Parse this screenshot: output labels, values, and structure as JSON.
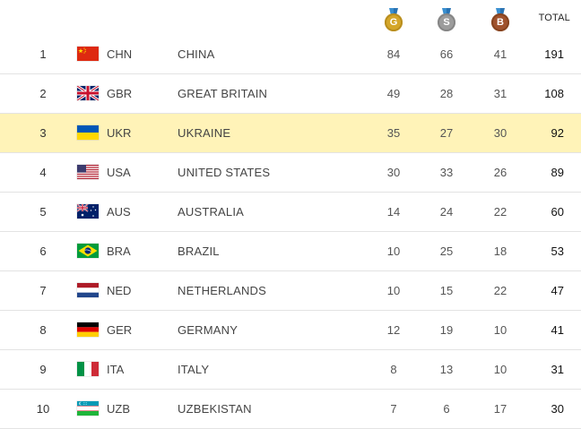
{
  "header": {
    "gold_letter": "G",
    "silver_letter": "S",
    "bronze_letter": "B",
    "total_label": "TOTAL"
  },
  "colors": {
    "gold": "#d4a62a",
    "silver": "#9c9c9c",
    "bronze": "#a0522d",
    "highlight_row": "#fff3b8"
  },
  "rows": [
    {
      "rank": "1",
      "flag": "china-flag-icon",
      "code": "CHN",
      "name": "CHINA",
      "gold": "84",
      "silver": "66",
      "bronze": "41",
      "total": "191"
    },
    {
      "rank": "2",
      "flag": "great-britain-flag-icon",
      "code": "GBR",
      "name": "GREAT BRITAIN",
      "gold": "49",
      "silver": "28",
      "bronze": "31",
      "total": "108"
    },
    {
      "rank": "3",
      "flag": "ukraine-flag-icon",
      "code": "UKR",
      "name": "UKRAINE",
      "gold": "35",
      "silver": "27",
      "bronze": "30",
      "total": "92"
    },
    {
      "rank": "4",
      "flag": "usa-flag-icon",
      "code": "USA",
      "name": "UNITED STATES",
      "gold": "30",
      "silver": "33",
      "bronze": "26",
      "total": "89"
    },
    {
      "rank": "5",
      "flag": "australia-flag-icon",
      "code": "AUS",
      "name": "AUSTRALIA",
      "gold": "14",
      "silver": "24",
      "bronze": "22",
      "total": "60"
    },
    {
      "rank": "6",
      "flag": "brazil-flag-icon",
      "code": "BRA",
      "name": "BRAZIL",
      "gold": "10",
      "silver": "25",
      "bronze": "18",
      "total": "53"
    },
    {
      "rank": "7",
      "flag": "netherlands-flag-icon",
      "code": "NED",
      "name": "NETHERLANDS",
      "gold": "10",
      "silver": "15",
      "bronze": "22",
      "total": "47"
    },
    {
      "rank": "8",
      "flag": "germany-flag-icon",
      "code": "GER",
      "name": "GERMANY",
      "gold": "12",
      "silver": "19",
      "bronze": "10",
      "total": "41"
    },
    {
      "rank": "9",
      "flag": "italy-flag-icon",
      "code": "ITA",
      "name": "ITALY",
      "gold": "8",
      "silver": "13",
      "bronze": "10",
      "total": "31"
    },
    {
      "rank": "10",
      "flag": "uzbekistan-flag-icon",
      "code": "UZB",
      "name": "UZBEKISTAN",
      "gold": "7",
      "silver": "6",
      "bronze": "17",
      "total": "30"
    }
  ]
}
